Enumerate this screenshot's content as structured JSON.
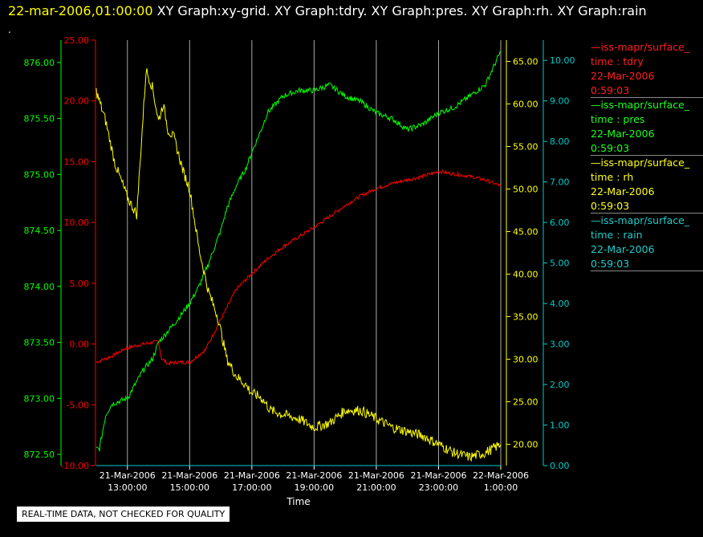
{
  "header": {
    "timestamp": "22-mar-2006,01:00:00",
    "graphs": "XY Graph:xy-grid.  XY Graph:tdry.  XY Graph:pres.  XY Graph:rh.  XY Graph:rain"
  },
  "dot": ".",
  "note": "REAL-TIME DATA, NOT CHECKED FOR QUALITY",
  "colors": {
    "tdry": "#ff0000",
    "pres": "#00ff00",
    "rh": "#ffff00",
    "rain": "#00cccc",
    "grid": "#aaaaaa"
  },
  "legend": [
    {
      "source": "—iss-mapr/surface_",
      "var": "time : tdry",
      "date": "22-Mar-2006",
      "time": "0:59:03",
      "color": "#ff2020"
    },
    {
      "source": "—iss-mapr/surface_",
      "var": "time : pres",
      "date": "22-Mar-2006",
      "time": "0:59:03",
      "color": "#20ff20"
    },
    {
      "source": "—iss-mapr/surface_",
      "var": "time : rh",
      "date": "22-Mar-2006",
      "time": "0:59:03",
      "color": "#ffff20"
    },
    {
      "source": "—iss-mapr/surface_",
      "var": "time : rain",
      "date": "22-Mar-2006",
      "time": "0:59:03",
      "color": "#20cccc"
    }
  ],
  "chart_data": {
    "type": "line",
    "xlabel": "Time",
    "x_ticks": [
      {
        "d": "21-Mar-2006",
        "t": "13:00:00"
      },
      {
        "d": "21-Mar-2006",
        "t": "15:00:00"
      },
      {
        "d": "21-Mar-2006",
        "t": "17:00:00"
      },
      {
        "d": "21-Mar-2006",
        "t": "19:00:00"
      },
      {
        "d": "21-Mar-2006",
        "t": "21:00:00"
      },
      {
        "d": "21-Mar-2006",
        "t": "23:00:00"
      },
      {
        "d": "22-Mar-2006",
        "t": "1:00:00"
      }
    ],
    "xlim_hours": [
      12.0,
      25.0
    ],
    "axes": {
      "tdry": {
        "ylim": [
          -10,
          25
        ],
        "ticks": [
          "25.00",
          "20.00",
          "15.00",
          "10.00",
          "5.00",
          "0.00",
          "-5.00",
          "-10.00"
        ]
      },
      "pres": {
        "ylim": [
          872.4,
          876.2
        ],
        "ticks": [
          "876.00",
          "875.50",
          "875.00",
          "874.50",
          "874.00",
          "873.50",
          "873.00",
          "872.50"
        ]
      },
      "rh": {
        "ylim": [
          17.5,
          67.5
        ],
        "ticks": [
          "65.00",
          "60.00",
          "55.00",
          "50.00",
          "45.00",
          "40.00",
          "35.00",
          "30.00",
          "25.00",
          "20.00"
        ]
      },
      "rain": {
        "ylim": [
          0,
          10.5
        ],
        "ticks": [
          "10.00",
          "9.00",
          "8.00",
          "7.00",
          "6.00",
          "5.00",
          "4.00",
          "3.00",
          "2.00",
          "1.00",
          "0.00"
        ]
      }
    },
    "series": [
      {
        "name": "tdry",
        "x": [
          12.0,
          12.5,
          13.0,
          13.5,
          14.0,
          14.1,
          14.3,
          14.6,
          15.0,
          15.5,
          16.0,
          16.5,
          17.0,
          17.5,
          18.0,
          18.5,
          19.0,
          19.5,
          20.0,
          20.5,
          21.0,
          21.5,
          22.0,
          22.5,
          23.0,
          23.5,
          24.0,
          24.5,
          25.0
        ],
        "y": [
          -1.5,
          -1.0,
          -0.3,
          0.0,
          0.2,
          -1.2,
          -1.6,
          -1.5,
          -1.5,
          -0.5,
          2.0,
          4.5,
          5.8,
          7.0,
          8.0,
          8.8,
          9.6,
          10.5,
          11.4,
          12.2,
          12.8,
          13.2,
          13.5,
          13.8,
          14.2,
          14.0,
          13.8,
          13.5,
          13.0
        ]
      },
      {
        "name": "pres",
        "x": [
          12.0,
          12.1,
          12.3,
          12.5,
          13.0,
          13.2,
          13.5,
          13.8,
          14.0,
          14.3,
          14.6,
          15.0,
          15.3,
          15.6,
          16.0,
          16.2,
          16.5,
          16.8,
          17.0,
          17.3,
          17.5,
          18.0,
          18.5,
          19.0,
          19.5,
          20.0,
          20.5,
          21.0,
          21.5,
          22.0,
          22.5,
          23.0,
          23.5,
          24.0,
          24.5,
          25.0
        ],
        "y": [
          872.55,
          872.55,
          872.85,
          872.95,
          873.0,
          873.1,
          873.25,
          873.35,
          873.5,
          873.6,
          873.7,
          873.85,
          874.0,
          874.2,
          874.5,
          874.7,
          874.9,
          875.05,
          875.2,
          875.4,
          875.55,
          875.7,
          875.75,
          875.75,
          875.8,
          875.7,
          875.65,
          875.55,
          875.5,
          875.4,
          875.45,
          875.55,
          875.6,
          875.7,
          875.8,
          876.1
        ]
      },
      {
        "name": "rh",
        "x": [
          12.0,
          12.3,
          12.6,
          13.0,
          13.3,
          13.6,
          13.8,
          14.0,
          14.15,
          14.3,
          14.5,
          14.8,
          15.0,
          15.3,
          15.6,
          15.9,
          16.2,
          16.5,
          16.8,
          17.0,
          17.3,
          17.6,
          18.0,
          18.5,
          19.0,
          19.5,
          20.0,
          20.5,
          21.0,
          21.5,
          22.0,
          22.5,
          23.0,
          23.5,
          24.0,
          24.5,
          25.0
        ],
        "y": [
          61.5,
          58,
          53,
          49,
          47,
          64,
          62,
          58,
          60,
          57,
          56,
          52,
          50,
          43,
          38,
          35,
          30,
          28,
          27,
          26,
          25.5,
          24,
          23.5,
          23,
          22,
          22.5,
          24,
          24,
          23,
          22,
          21.5,
          21,
          20,
          19,
          18.5,
          19,
          20
        ]
      },
      {
        "name": "rain",
        "x": [
          12.0,
          25.0
        ],
        "y": [
          0.0,
          0.0
        ]
      }
    ]
  }
}
